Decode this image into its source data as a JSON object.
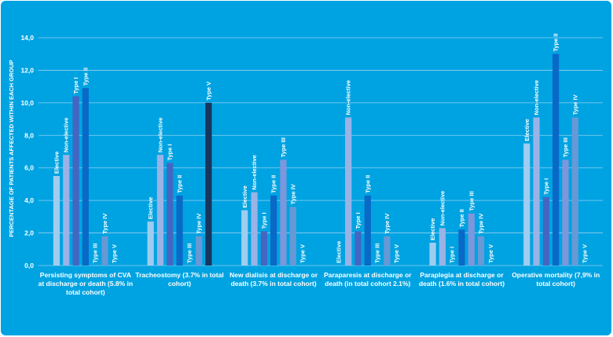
{
  "chart_data": {
    "type": "bar",
    "title": "",
    "xlabel": "",
    "ylabel": "PERCENTAGE OF PATIENTS AFFECTED WITHIN EACH GROUP",
    "ylim": [
      0,
      14
    ],
    "yticks": [
      "0,0",
      "2,0",
      "4,0",
      "6,0",
      "8,0",
      "10,0",
      "12,0",
      "14,0"
    ],
    "grid": true,
    "categories": [
      [
        "Persisting symptoms of CVA",
        "at discharge or death (5.8% in",
        "total cohort)"
      ],
      [
        "Tracheostomy (3.7% in total",
        "cohort)"
      ],
      [
        "New dialisis at discharge or",
        "death (3.7% in total cohort)"
      ],
      [
        "Paraparesis at discharge or",
        "death (in total cohort 2.1%)"
      ],
      [
        "Paraplegia at discharge or",
        "death (1.6% in total cohort)"
      ],
      [
        "Operative mortality (7,9% in",
        "total cohort)"
      ]
    ],
    "series": [
      {
        "name": "Elective",
        "color": "#9fcdf0",
        "values": [
          5.5,
          2.7,
          3.4,
          0.0,
          1.4,
          7.5
        ]
      },
      {
        "name": "Non-elective",
        "color": "#9ab3e6",
        "values": [
          6.8,
          6.8,
          4.5,
          9.1,
          2.3,
          9.1
        ]
      },
      {
        "name": "Type I",
        "color": "#4466c2",
        "values": [
          10.4,
          6.3,
          2.1,
          2.1,
          0.0,
          4.2
        ]
      },
      {
        "name": "Type II",
        "color": "#0a68c6",
        "values": [
          10.9,
          4.3,
          4.3,
          4.3,
          2.2,
          13.0
        ]
      },
      {
        "name": "Type III",
        "color": "#7d96dc",
        "values": [
          0.0,
          0.0,
          6.5,
          0.0,
          3.2,
          6.5
        ]
      },
      {
        "name": "Type IV",
        "color": "#6699d6",
        "values": [
          1.8,
          1.8,
          3.6,
          1.8,
          1.8,
          9.1
        ]
      },
      {
        "name": "Type V",
        "color": "#17365e",
        "values": [
          0.0,
          10.0,
          0.0,
          0.0,
          0.0,
          0.0
        ]
      }
    ]
  }
}
